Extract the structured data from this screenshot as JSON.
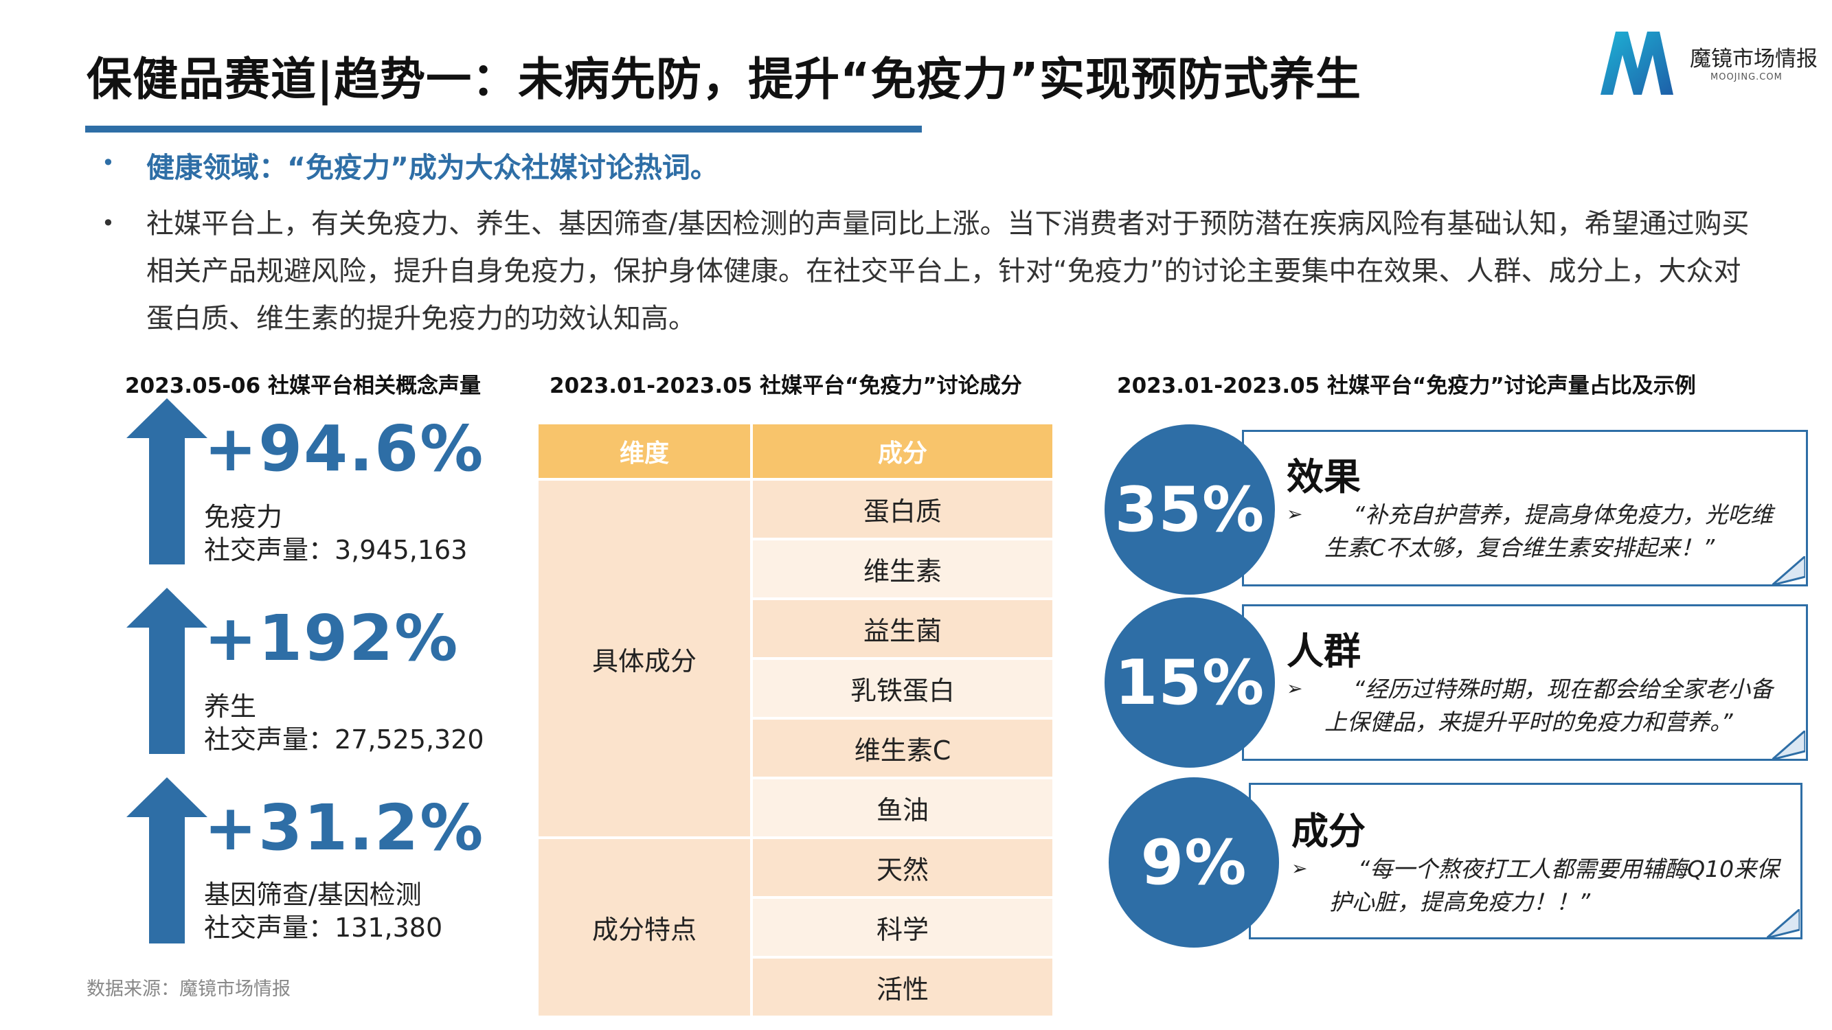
{
  "header": {
    "title": "保健品赛道|趋势一：未病先防，提升“免疫力”实现预防式养生",
    "logo_name": "魔镜市场情报",
    "logo_domain": "MOOJING.COM"
  },
  "bullets": {
    "marker": "•",
    "highlight": "健康领域：“免疫力”成为大众社媒讨论热词。",
    "body": "社媒平台上，有关免疫力、养生、基因筛查/基因检测的声量同比上涨。当下消费者对于预防潜在疾病风险有基础认知，希望通过购买相关产品规避风险，提升自身免疫力，保护身体健康。在社交平台上，针对“免疫力”的讨论主要集中在效果、人群、成分上，大众对蛋白质、维生素的提升免疫力的功效认知高。"
  },
  "sections": {
    "left_title": "2023.05-06 社媒平台相关概念声量",
    "middle_title": "2023.01-2023.05 社媒平台“免疫力”讨论成分",
    "right_title": "2023.01-2023.05 社媒平台“免疫力”讨论声量占比及示例"
  },
  "stats": [
    {
      "change": "+94.6%",
      "name": "免疫力",
      "volume": "社交声量：3,945,163"
    },
    {
      "change": "+192%",
      "name": "养生",
      "volume": "社交声量：27,525,320"
    },
    {
      "change": "+31.2%",
      "name": "基因筛查/基因检测",
      "volume": "社交声量：131,380"
    }
  ],
  "table": {
    "headers": [
      "维度",
      "成分"
    ],
    "groups": [
      {
        "dimension": "具体成分",
        "items": [
          "蛋白质",
          "维生素",
          "益生菌",
          "乳铁蛋白",
          "维生素C",
          "鱼油"
        ]
      },
      {
        "dimension": "成分特点",
        "items": [
          "天然",
          "科学",
          "活性"
        ]
      }
    ]
  },
  "cards": [
    {
      "percent": "35%",
      "share": 0.35,
      "title": "效果",
      "marker": "➢",
      "quote": "“补充自护营养，提高身体免疫力，光吃维生素C不太够，复合维生素安排起来！”"
    },
    {
      "percent": "15%",
      "share": 0.15,
      "title": "人群",
      "marker": "➢",
      "quote": "“经历过特殊时期，现在都会给全家老小备上保健品，来提升平时的免疫力和营养。”"
    },
    {
      "percent": "9%",
      "share": 0.09,
      "title": "成分",
      "marker": "➢",
      "quote": "“每一个熬夜打工人都需要用辅酶Q10来保护心脏，提高免疫力！！”"
    }
  ],
  "footer": {
    "source": "数据来源：魔镜市场情报"
  },
  "colors": {
    "primary": "#2e6ea6",
    "table_header": "#f8c46b",
    "table_light": "#fbe3cc",
    "table_lighter": "#fdf1e5"
  }
}
